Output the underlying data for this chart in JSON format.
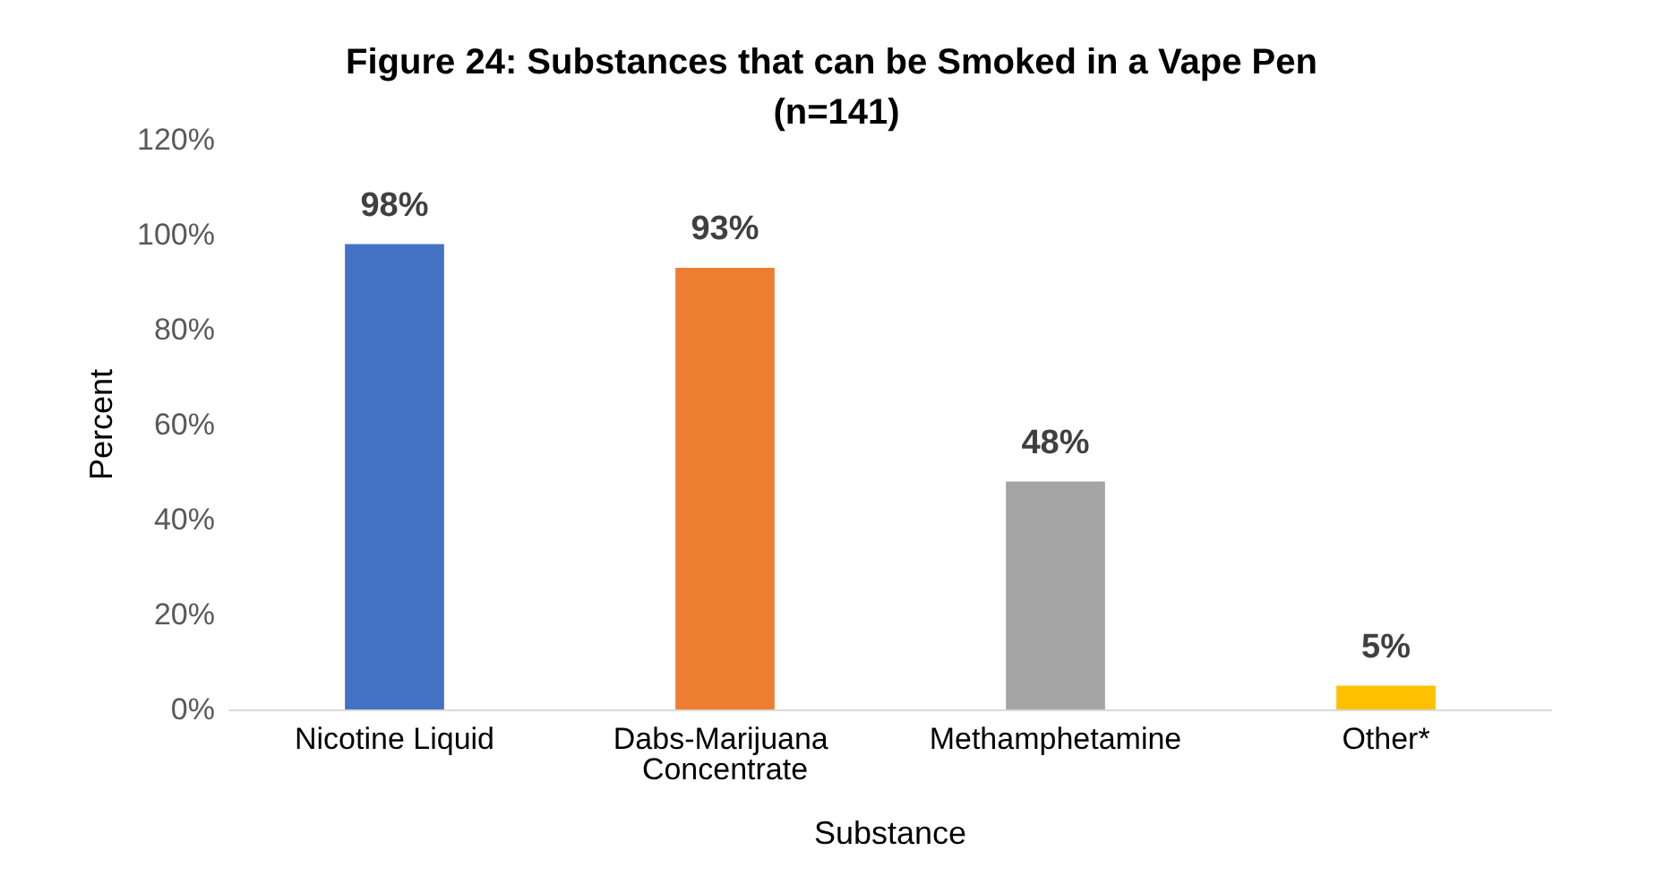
{
  "chart_data": {
    "type": "bar",
    "title": "Figure 24: Substances that can be Smoked in a Vape Pen (n=141)",
    "xlabel": "Substance",
    "ylabel": "Percent",
    "categories": [
      "Nicotine Liquid",
      "Dabs-Marijuana Concentrate",
      "Methamphetamine",
      "Other*"
    ],
    "values": [
      98,
      93,
      48,
      5
    ],
    "colors": [
      "#4472c4",
      "#ed7d31",
      "#a5a5a5",
      "#ffc000"
    ],
    "value_labels": [
      "98%",
      "93%",
      "48%",
      "5%"
    ],
    "ylim": [
      0,
      120
    ],
    "yticks": [
      {
        "value": 0,
        "label": "0%"
      },
      {
        "value": 20,
        "label": "20%"
      },
      {
        "value": 40,
        "label": "40%"
      },
      {
        "value": 60,
        "label": "60%"
      },
      {
        "value": 80,
        "label": "80%"
      },
      {
        "value": 100,
        "label": "100%"
      },
      {
        "value": 120,
        "label": "120%"
      }
    ],
    "grid": false
  }
}
